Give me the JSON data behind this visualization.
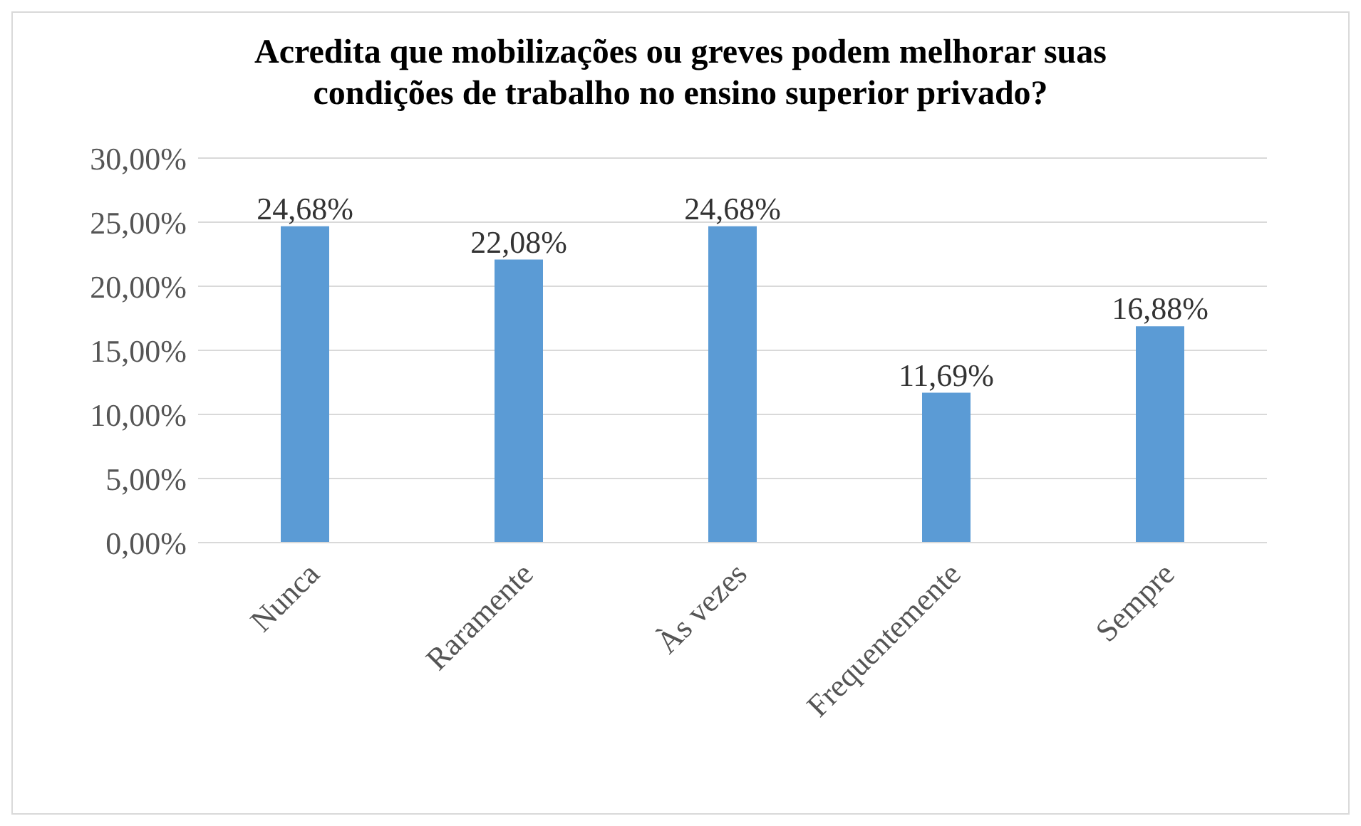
{
  "chart_data": {
    "type": "bar",
    "title": "Acredita que mobilizações ou greves podem melhorar suas condições de trabalho no ensino superior privado?",
    "categories": [
      "Nunca",
      "Raramente",
      "Às vezes",
      "Frequentemente",
      "Sempre"
    ],
    "values": [
      24.68,
      22.08,
      24.68,
      11.69,
      16.88
    ],
    "value_labels": [
      "24,68%",
      "22,08%",
      "24,68%",
      "11,69%",
      "16,88%"
    ],
    "color": "#5b9bd5",
    "ylim": [
      0,
      30
    ],
    "yticks": [
      {
        "value": 0,
        "label": "0,00%"
      },
      {
        "value": 5,
        "label": "5,00%"
      },
      {
        "value": 10,
        "label": "10,00%"
      },
      {
        "value": 15,
        "label": "15,00%"
      },
      {
        "value": 20,
        "label": "20,00%"
      },
      {
        "value": 25,
        "label": "25,00%"
      },
      {
        "value": 30,
        "label": "30,00%"
      }
    ],
    "grid": "y",
    "legend": false
  }
}
